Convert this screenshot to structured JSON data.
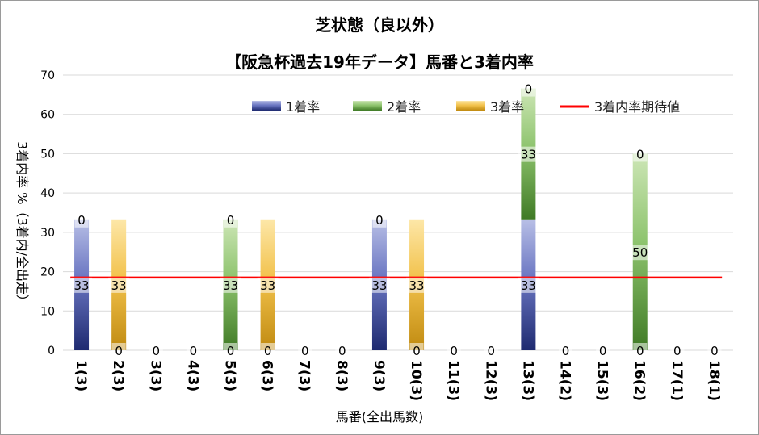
{
  "chart_data": {
    "type": "bar",
    "title": "芝状態（良以外）",
    "subtitle": "【阪急杯過去19年データ】馬番と3着内率",
    "xlabel": "馬番(全出馬数)",
    "ylabel": "3着内率 %（3着内/全出走）",
    "ylim": [
      0,
      70
    ],
    "yticks": [
      0,
      10,
      20,
      30,
      40,
      50,
      60,
      70
    ],
    "grid": true,
    "legend_position": "top",
    "categories": [
      "1(3)",
      "2(3)",
      "3(3)",
      "4(3)",
      "5(3)",
      "6(3)",
      "7(3)",
      "8(3)",
      "9(3)",
      "10(3)",
      "11(3)",
      "12(3)",
      "13(3)",
      "14(2)",
      "15(3)",
      "16(2)",
      "17(1)",
      "18(1)"
    ],
    "series": [
      {
        "name": "1着率",
        "color": "#3b4a9a",
        "values": [
          33.3,
          0,
          0,
          0,
          0,
          0,
          0,
          0,
          33.3,
          0,
          0,
          0,
          33.3,
          0,
          0,
          0,
          0,
          0
        ]
      },
      {
        "name": "2着率",
        "color": "#5e9a3e",
        "values": [
          0,
          0,
          0,
          0,
          33.3,
          0,
          0,
          0,
          0,
          0,
          0,
          0,
          33.3,
          0,
          0,
          50,
          0,
          0
        ]
      },
      {
        "name": "3着率",
        "color": "#e0a820",
        "values": [
          0,
          33.3,
          0,
          0,
          0,
          33.3,
          0,
          0,
          0,
          33.3,
          0,
          0,
          0,
          0,
          0,
          0,
          0,
          0
        ]
      }
    ],
    "reference_line": {
      "name": "3着内率期待値",
      "color": "#ff0000",
      "value": 18.5
    },
    "data_labels": [
      [
        "33",
        "0",
        "0"
      ],
      [
        "0",
        "0",
        "33"
      ],
      [
        "0",
        "0",
        "0"
      ],
      [
        "0",
        "0",
        "0"
      ],
      [
        "0",
        "33",
        "0"
      ],
      [
        "0",
        "0",
        "33"
      ],
      [
        "0",
        "0",
        "0"
      ],
      [
        "0",
        "0",
        "0"
      ],
      [
        "33",
        "0",
        "0"
      ],
      [
        "0",
        "0",
        "33"
      ],
      [
        "0",
        "0",
        "0"
      ],
      [
        "0",
        "0",
        "0"
      ],
      [
        "33",
        "33",
        "0"
      ],
      [
        "0",
        "0",
        "0"
      ],
      [
        "0",
        "0",
        "0"
      ],
      [
        "0",
        "50",
        "0"
      ],
      [
        "0",
        "0",
        "0"
      ],
      [
        "0",
        "0",
        "0"
      ]
    ]
  }
}
